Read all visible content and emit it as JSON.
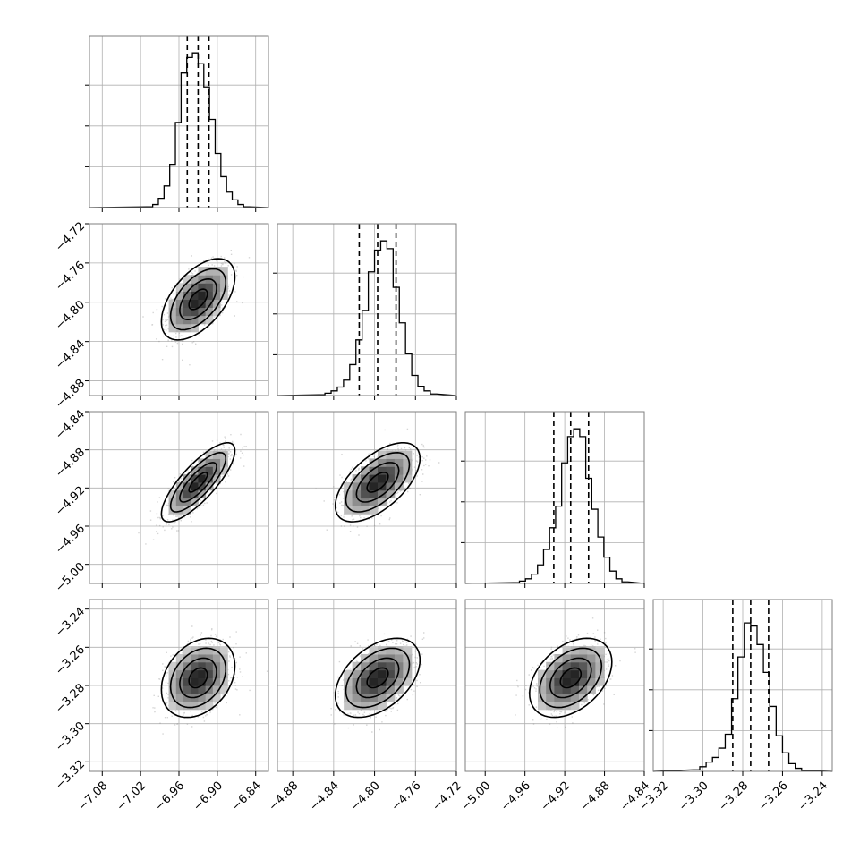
{
  "chart_data": {
    "type": "corner",
    "grid": true,
    "colors": {
      "line": "#000000",
      "points": "#888888",
      "frame": "#7f7f7f",
      "grid": "#b0b0b0"
    },
    "parameters": [
      {
        "index": 0,
        "range": [
          -7.1,
          -6.82
        ],
        "ticks": [
          -7.08,
          -7.02,
          -6.96,
          -6.9,
          -6.84
        ],
        "tick_labels": [
          "−7.08",
          "−7.02",
          "−6.96",
          "−6.90",
          "−6.84"
        ],
        "median": -6.93,
        "q16": -6.947,
        "q84": -6.913,
        "sigma": 0.025
      },
      {
        "index": 1,
        "range": [
          -4.895,
          -4.72
        ],
        "ticks": [
          -4.88,
          -4.84,
          -4.8,
          -4.76,
          -4.72
        ],
        "tick_labels": [
          "−4.88",
          "−4.84",
          "−4.80",
          "−4.76",
          "−4.72"
        ],
        "median": -4.797,
        "q16": -4.815,
        "q84": -4.779,
        "sigma": 0.018
      },
      {
        "index": 2,
        "range": [
          -5.02,
          -4.84
        ],
        "ticks": [
          -5.0,
          -4.96,
          -4.92,
          -4.88,
          -4.84
        ],
        "tick_labels": [
          "−5.00",
          "−4.96",
          "−4.92",
          "−4.88",
          "−4.84"
        ],
        "median": -4.914,
        "q16": -4.931,
        "q84": -4.896,
        "sigma": 0.018
      },
      {
        "index": 3,
        "range": [
          -3.325,
          -3.235
        ],
        "ticks": [
          -3.32,
          -3.3,
          -3.28,
          -3.26,
          -3.24
        ],
        "tick_labels": [
          "−3.32",
          "−3.30",
          "−3.28",
          "−3.26",
          "−3.24"
        ],
        "median": -3.276,
        "q16": -3.285,
        "q84": -3.267,
        "sigma": 0.009
      }
    ],
    "correlations": [
      [
        1.0,
        0.55,
        0.8,
        0.3
      ],
      [
        0.55,
        1.0,
        0.6,
        0.45
      ],
      [
        0.8,
        0.6,
        1.0,
        0.4
      ],
      [
        0.3,
        0.45,
        0.4,
        1.0
      ]
    ],
    "histograms": [
      [
        0.005,
        0.02,
        0.06,
        0.14,
        0.28,
        0.55,
        0.87,
        0.97,
        1.0,
        0.93,
        0.78,
        0.57,
        0.35,
        0.2,
        0.1,
        0.05,
        0.02,
        0.005
      ],
      [
        0.005,
        0.015,
        0.03,
        0.055,
        0.1,
        0.2,
        0.36,
        0.55,
        0.8,
        0.94,
        1.0,
        0.95,
        0.7,
        0.47,
        0.27,
        0.13,
        0.06,
        0.03,
        0.01
      ],
      [
        0.005,
        0.015,
        0.03,
        0.06,
        0.12,
        0.22,
        0.36,
        0.5,
        0.78,
        0.95,
        1.0,
        0.95,
        0.68,
        0.48,
        0.3,
        0.17,
        0.08,
        0.03,
        0.01
      ],
      [
        0.01,
        0.03,
        0.06,
        0.09,
        0.15,
        0.24,
        0.47,
        0.74,
        0.96,
        0.94,
        0.82,
        0.64,
        0.42,
        0.23,
        0.12,
        0.05,
        0.02,
        0.005
      ]
    ],
    "contour_levels_sigma": [
      0.5,
      1.0,
      1.5,
      2.0
    ]
  }
}
